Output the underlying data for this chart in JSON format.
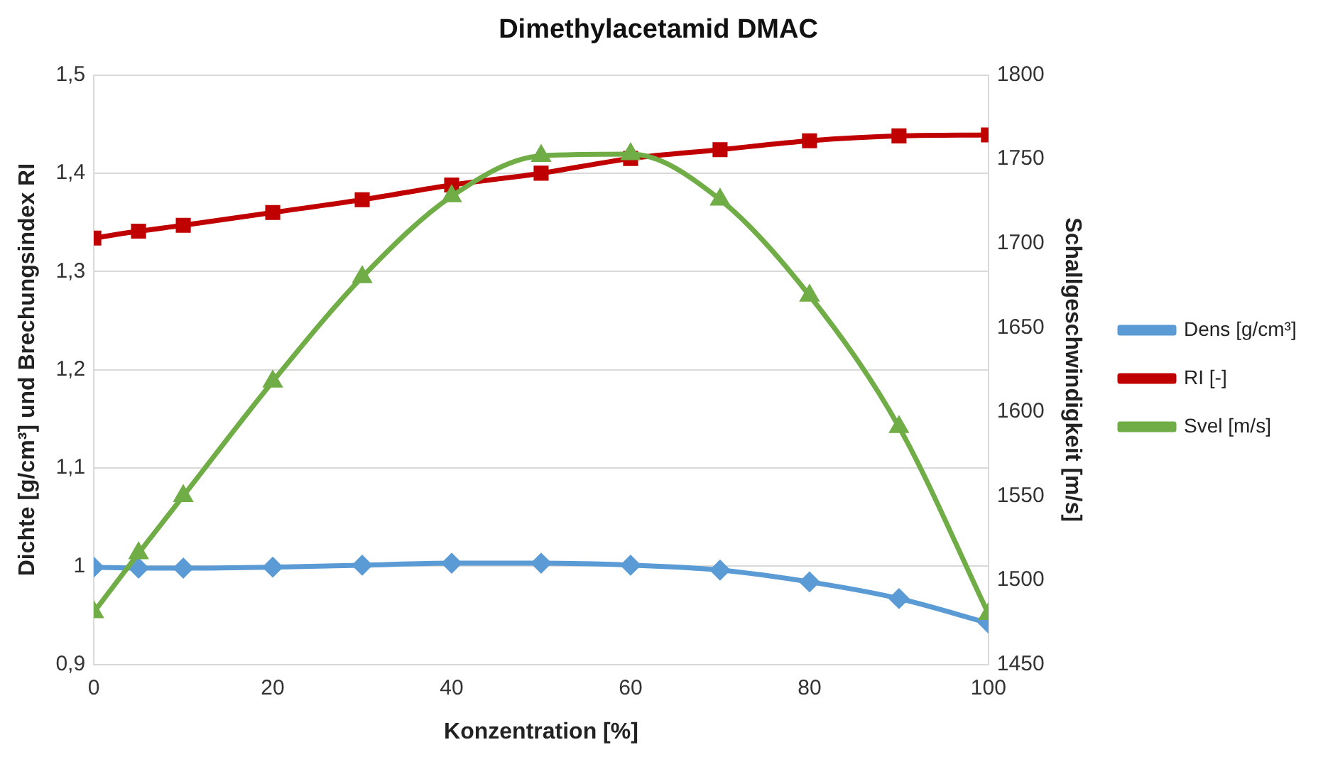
{
  "chart_data": {
    "type": "line",
    "title": "Dimethylacetamid DMAC",
    "xlabel": "Konzentration [%]",
    "ylabel": "Dichte [g/cm³] und Brechungsindex RI",
    "y2label": "Schallgeschwindigkeit [m/s]",
    "x": [
      0,
      5,
      10,
      20,
      30,
      40,
      50,
      60,
      70,
      80,
      90,
      100
    ],
    "series": [
      {
        "name": "Dens [g/cm³]",
        "color": "#5b9bd5",
        "marker": "diamond",
        "values": [
          0.999,
          0.998,
          0.998,
          0.999,
          1.001,
          1.003,
          1.003,
          1.001,
          0.996,
          0.984,
          0.967,
          0.942
        ]
      },
      {
        "name": "RI [-]",
        "color": "#c00000",
        "marker": "square",
        "values": [
          1.334,
          1.341,
          1.347,
          1.36,
          1.373,
          1.388,
          1.4,
          1.415,
          1.424,
          1.433,
          1.438,
          1.439
        ]
      },
      {
        "name": "Svel [m/s]",
        "color": "#70ad47",
        "marker": "triangle",
        "axis": "y2",
        "values": [
          1481,
          1516,
          1550,
          1618,
          1680,
          1728,
          1752,
          1753,
          1726,
          1669,
          1591,
          1480
        ]
      }
    ],
    "xlim": [
      0,
      100
    ],
    "xticks": [
      0,
      20,
      40,
      60,
      80,
      100
    ],
    "ylim": [
      0.9,
      1.5
    ],
    "yticks": [
      {
        "value": 0.9,
        "label": "0,9"
      },
      {
        "value": 1,
        "label": "1"
      },
      {
        "value": 1.1,
        "label": "1,1"
      },
      {
        "value": 1.2,
        "label": "1,2"
      },
      {
        "value": 1.3,
        "label": "1,3"
      },
      {
        "value": 1.4,
        "label": "1,4"
      },
      {
        "value": 1.5,
        "label": "1,5"
      }
    ],
    "y2lim": [
      1450,
      1800
    ],
    "y2ticks": [
      1450,
      1500,
      1550,
      1600,
      1650,
      1700,
      1750,
      1800
    ],
    "grid": "y",
    "legend": "right",
    "line_style": "solid"
  }
}
